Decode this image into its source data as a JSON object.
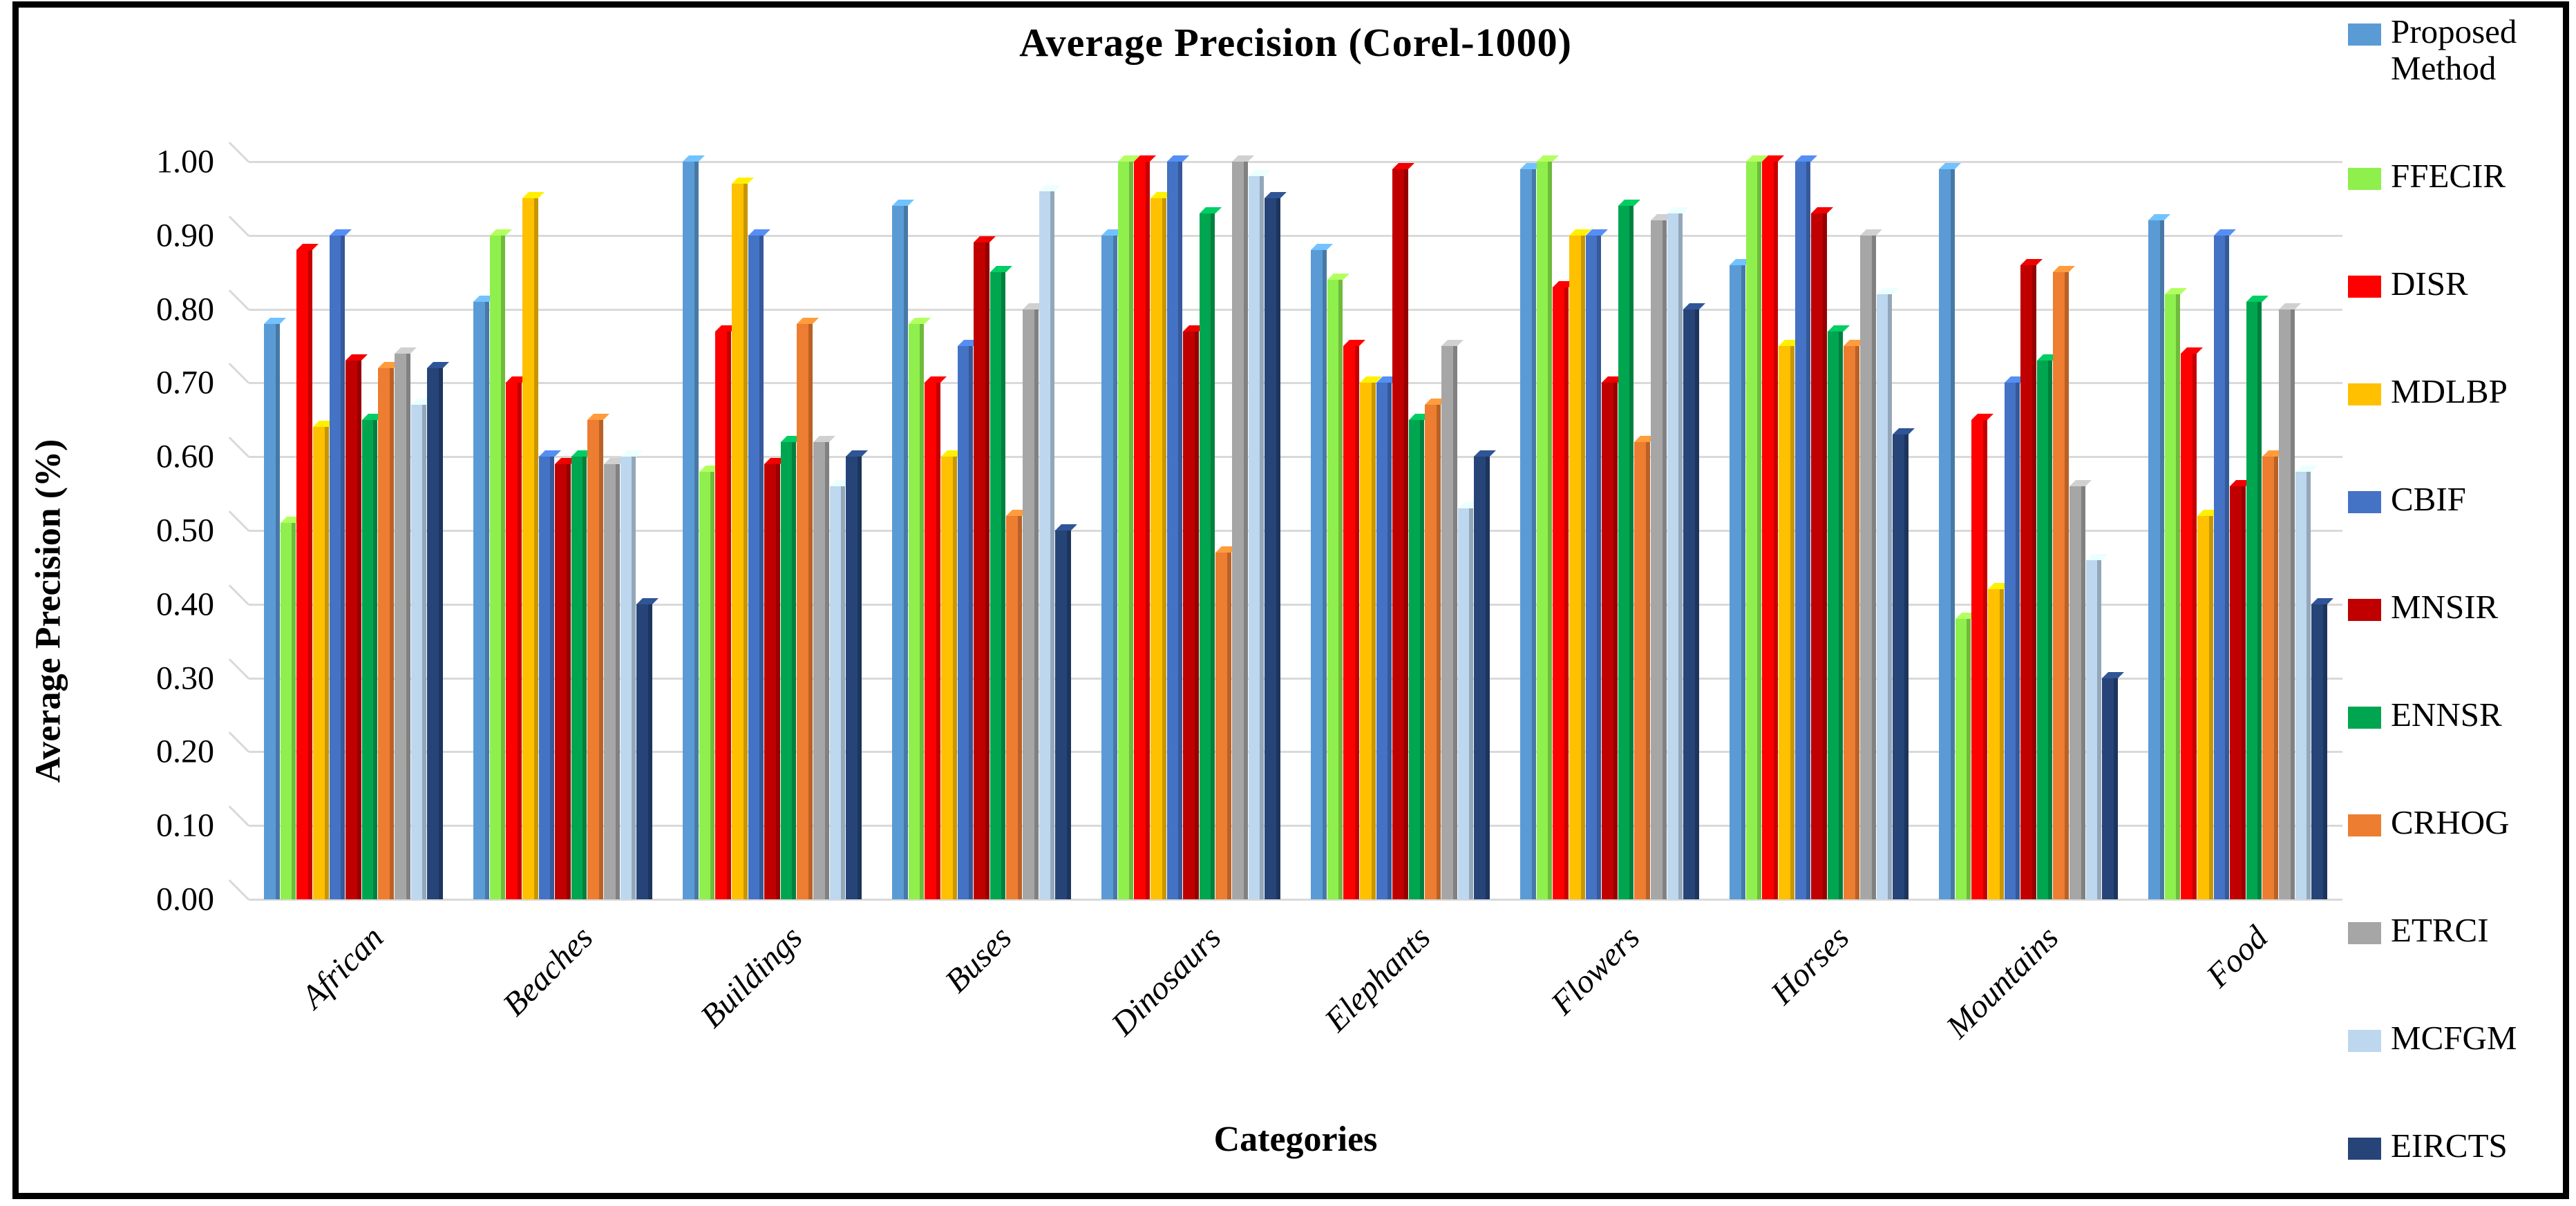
{
  "title": "Average Precision (Corel-1000)",
  "axes": {
    "y_label": "Average Precision (%)",
    "x_label": "Categories"
  },
  "chart_data": {
    "type": "bar",
    "title": "Average Precision (Corel-1000)",
    "xlabel": "Categories",
    "ylabel": "Average Precision (%)",
    "ylim": [
      0.0,
      1.0
    ],
    "ytick_step": 0.1,
    "ytick_labels": [
      "0.00",
      "0.10",
      "0.20",
      "0.30",
      "0.40",
      "0.50",
      "0.60",
      "0.70",
      "0.80",
      "0.90",
      "1.00"
    ],
    "grid": true,
    "legend_position": "right",
    "categories": [
      "African",
      "Beaches",
      "Buildings",
      "Buses",
      "Dinosaurs",
      "Elephants",
      "Flowers",
      "Horses",
      "Mountains",
      "Food"
    ],
    "series": [
      {
        "name": "Proposed Method",
        "color": "#5B9BD5",
        "values": [
          0.78,
          0.81,
          1.0,
          0.94,
          0.9,
          0.88,
          0.99,
          0.86,
          0.99,
          0.92
        ]
      },
      {
        "name": "FFECIR",
        "color": "#8FF04D",
        "values": [
          0.51,
          0.9,
          0.58,
          0.78,
          1.0,
          0.84,
          1.0,
          1.0,
          0.38,
          0.82
        ]
      },
      {
        "name": "DISR",
        "color": "#FE0000",
        "values": [
          0.88,
          0.7,
          0.77,
          0.7,
          1.0,
          0.75,
          0.83,
          1.0,
          0.65,
          0.74
        ]
      },
      {
        "name": "MDLBP",
        "color": "#FFC000",
        "values": [
          0.64,
          0.95,
          0.97,
          0.6,
          0.95,
          0.7,
          0.9,
          0.75,
          0.42,
          0.52
        ]
      },
      {
        "name": "CBIF",
        "color": "#4472C4",
        "values": [
          0.9,
          0.6,
          0.9,
          0.75,
          1.0,
          0.7,
          0.9,
          1.0,
          0.7,
          0.9
        ]
      },
      {
        "name": "MNSIR",
        "color": "#C00000",
        "values": [
          0.73,
          0.59,
          0.59,
          0.89,
          0.77,
          0.99,
          0.7,
          0.93,
          0.86,
          0.56
        ]
      },
      {
        "name": "ENNSR",
        "color": "#00A550",
        "values": [
          0.65,
          0.6,
          0.62,
          0.85,
          0.93,
          0.65,
          0.94,
          0.77,
          0.73,
          0.81
        ]
      },
      {
        "name": "CRHOG",
        "color": "#ED7D31",
        "values": [
          0.72,
          0.65,
          0.78,
          0.52,
          0.47,
          0.67,
          0.62,
          0.75,
          0.85,
          0.6
        ]
      },
      {
        "name": "ETRCI",
        "color": "#A6A6A6",
        "values": [
          0.74,
          0.59,
          0.62,
          0.8,
          1.0,
          0.75,
          0.92,
          0.9,
          0.56,
          0.8
        ]
      },
      {
        "name": "MCFGM",
        "color": "#BDD7EE",
        "values": [
          0.67,
          0.6,
          0.56,
          0.96,
          0.98,
          0.53,
          0.93,
          0.82,
          0.46,
          0.58
        ]
      },
      {
        "name": "EIRCTS",
        "color": "#264478",
        "values": [
          0.72,
          0.4,
          0.6,
          0.5,
          0.95,
          0.6,
          0.8,
          0.63,
          0.3,
          0.4
        ]
      }
    ]
  }
}
